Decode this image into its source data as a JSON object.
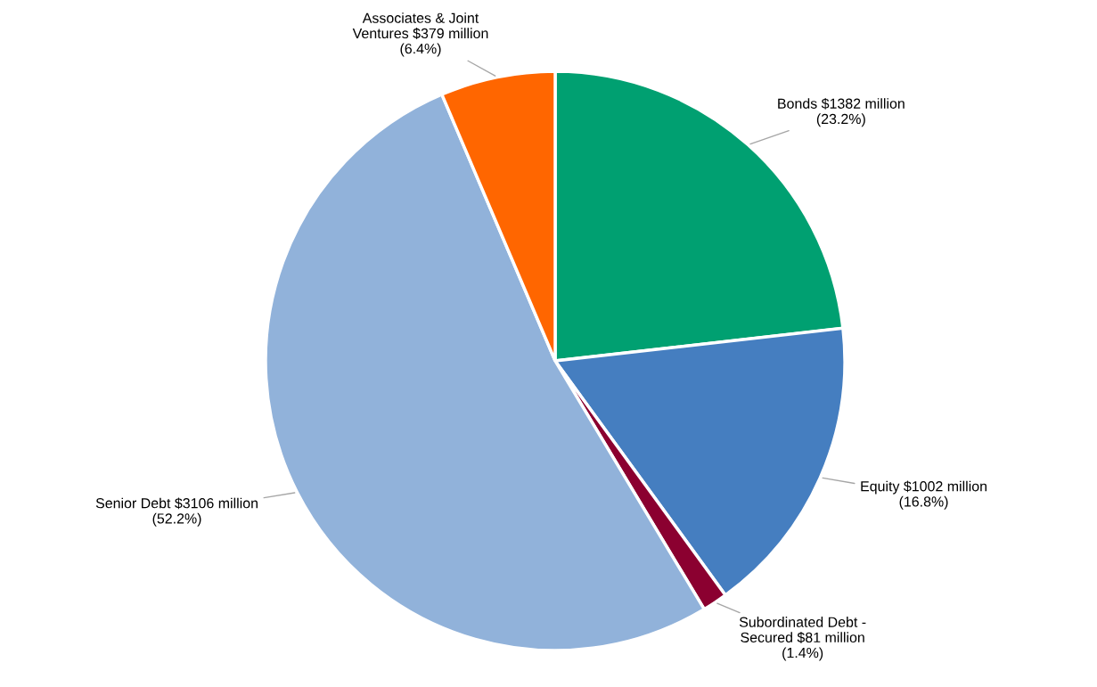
{
  "chart_data": {
    "type": "pie",
    "categories": [
      "Bonds $1382 million\n(23.2%)",
      "Equity $1002 million\n(16.8%)",
      "Subordinated Debt -\nSecured $81 million\n(1.4%)",
      "Senior Debt $3106 million\n(52.2%)",
      "Associates & Joint\nVentures $379 million\n(6.4%)"
    ],
    "values": [
      23.2,
      16.8,
      1.4,
      52.2,
      6.4
    ],
    "colors": [
      "#00a071",
      "#457ec0",
      "#8b0030",
      "#91b2da",
      "#ff6600"
    ],
    "legend": false
  }
}
